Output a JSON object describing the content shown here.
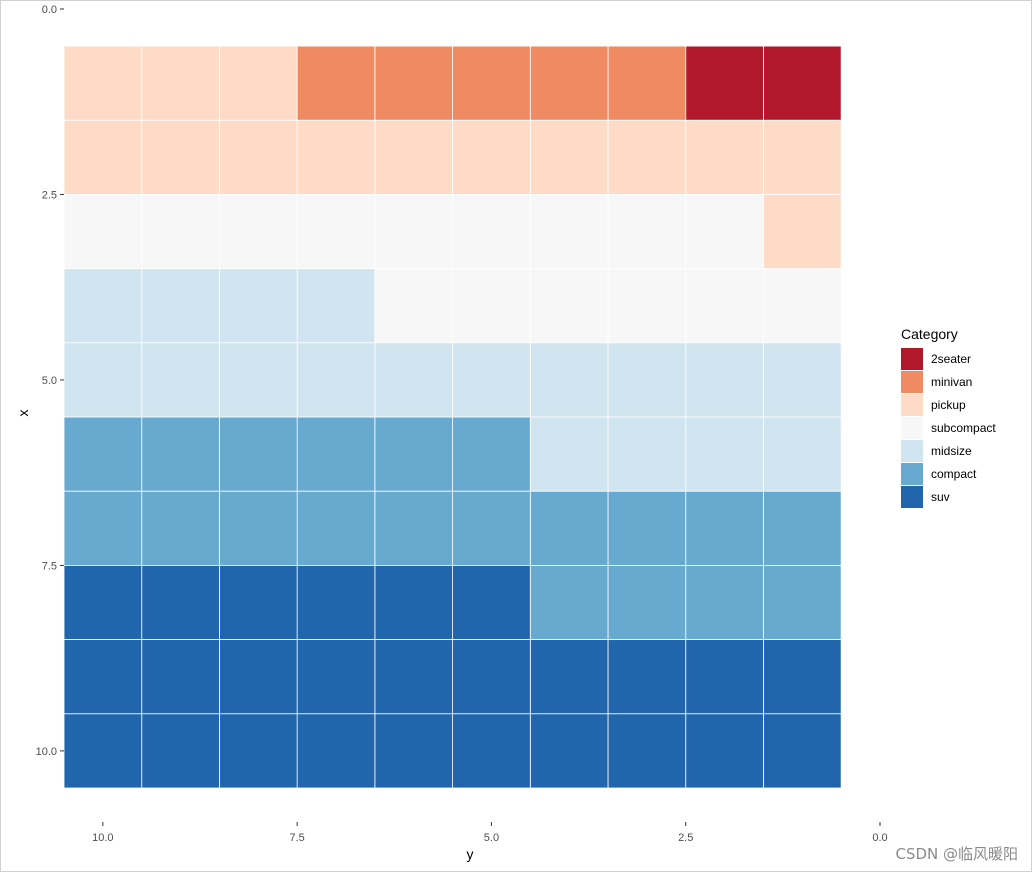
{
  "chart_data": {
    "type": "heatmap",
    "title": "",
    "xlabel": "y",
    "ylabel": "x",
    "x_reversed": true,
    "y_reversed": true,
    "xlim": [
      0,
      10.5
    ],
    "ylim": [
      0,
      10.5
    ],
    "x_ticks": [
      10.0,
      7.5,
      5.0,
      2.5,
      0.0
    ],
    "x_tick_labels": [
      "10.0",
      "7.5",
      "5.0",
      "2.5",
      "0.0"
    ],
    "y_ticks": [
      0.0,
      2.5,
      5.0,
      7.5,
      10.0
    ],
    "y_tick_labels": [
      "0.0",
      "2.5",
      "5.0",
      "7.5",
      "10.0"
    ],
    "grid": false,
    "legend": {
      "title": "Category",
      "position": "right",
      "entries": [
        {
          "name": "2seater",
          "color": "#b2182b"
        },
        {
          "name": "minivan",
          "color": "#ef8a62"
        },
        {
          "name": "pickup",
          "color": "#fddbc7"
        },
        {
          "name": "subcompact",
          "color": "#f7f7f7"
        },
        {
          "name": "midsize",
          "color": "#d1e5f0"
        },
        {
          "name": "compact",
          "color": "#67a9cf"
        },
        {
          "name": "suv",
          "color": "#2166ac"
        }
      ]
    },
    "x_values": [
      1,
      2,
      3,
      4,
      5,
      6,
      7,
      8,
      9,
      10
    ],
    "rows": [
      {
        "x": 1,
        "cells": [
          "2seater",
          "2seater",
          "minivan",
          "minivan",
          "minivan",
          "minivan",
          "minivan",
          "pickup",
          "pickup",
          "pickup"
        ]
      },
      {
        "x": 2,
        "cells": [
          "pickup",
          "pickup",
          "pickup",
          "pickup",
          "pickup",
          "pickup",
          "pickup",
          "pickup",
          "pickup",
          "pickup"
        ]
      },
      {
        "x": 3,
        "cells": [
          "pickup",
          "subcompact",
          "subcompact",
          "subcompact",
          "subcompact",
          "subcompact",
          "subcompact",
          "subcompact",
          "subcompact",
          "subcompact"
        ]
      },
      {
        "x": 4,
        "cells": [
          "subcompact",
          "subcompact",
          "subcompact",
          "subcompact",
          "subcompact",
          "subcompact",
          "midsize",
          "midsize",
          "midsize",
          "midsize"
        ]
      },
      {
        "x": 5,
        "cells": [
          "midsize",
          "midsize",
          "midsize",
          "midsize",
          "midsize",
          "midsize",
          "midsize",
          "midsize",
          "midsize",
          "midsize"
        ]
      },
      {
        "x": 6,
        "cells": [
          "midsize",
          "midsize",
          "midsize",
          "midsize",
          "compact",
          "compact",
          "compact",
          "compact",
          "compact",
          "compact"
        ]
      },
      {
        "x": 7,
        "cells": [
          "compact",
          "compact",
          "compact",
          "compact",
          "compact",
          "compact",
          "compact",
          "compact",
          "compact",
          "compact"
        ]
      },
      {
        "x": 8,
        "cells": [
          "compact",
          "compact",
          "compact",
          "compact",
          "suv",
          "suv",
          "suv",
          "suv",
          "suv",
          "suv"
        ]
      },
      {
        "x": 9,
        "cells": [
          "suv",
          "suv",
          "suv",
          "suv",
          "suv",
          "suv",
          "suv",
          "suv",
          "suv",
          "suv"
        ]
      },
      {
        "x": 10,
        "cells": [
          "suv",
          "suv",
          "suv",
          "suv",
          "suv",
          "suv",
          "suv",
          "suv",
          "suv",
          "suv"
        ]
      }
    ]
  },
  "watermark": "CSDN @临风暖阳"
}
